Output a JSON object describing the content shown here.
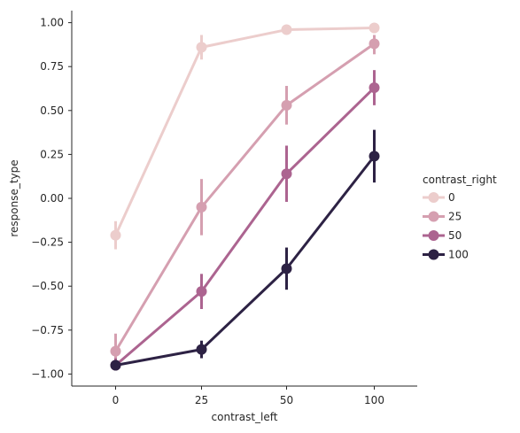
{
  "chart_data": {
    "type": "line",
    "xlabel": "contrast_left",
    "ylabel": "response_type",
    "categories": [
      "0",
      "25",
      "50",
      "100"
    ],
    "ylim": [
      -1.08,
      1.08
    ],
    "yticks": [
      "−1.00",
      "−0.75",
      "−0.50",
      "−0.25",
      "0.00",
      "0.25",
      "0.50",
      "0.75",
      "1.00"
    ],
    "ytick_values": [
      -1.0,
      -0.75,
      -0.5,
      -0.25,
      0.0,
      0.25,
      0.5,
      0.75,
      1.0
    ],
    "grid": false,
    "legend": {
      "title": "contrast_right",
      "position": "right"
    },
    "series": [
      {
        "name": "0",
        "color": "#eccdcc",
        "values": [
          -0.21,
          0.86,
          0.96,
          0.97
        ],
        "ci_low": [
          -0.29,
          0.79,
          0.94,
          0.94
        ],
        "ci_high": [
          -0.13,
          0.93,
          0.98,
          0.99
        ]
      },
      {
        "name": "25",
        "color": "#d59fb0",
        "values": [
          -0.87,
          -0.05,
          0.53,
          0.88
        ],
        "ci_low": [
          -0.96,
          -0.21,
          0.42,
          0.82
        ],
        "ci_high": [
          -0.77,
          0.11,
          0.64,
          0.93
        ]
      },
      {
        "name": "50",
        "color": "#ac6490",
        "values": [
          -0.95,
          -0.53,
          0.14,
          0.63
        ],
        "ci_low": [
          -0.98,
          -0.63,
          -0.02,
          0.53
        ],
        "ci_high": [
          -0.91,
          -0.43,
          0.3,
          0.73
        ]
      },
      {
        "name": "100",
        "color": "#2d2244",
        "values": [
          -0.95,
          -0.86,
          -0.4,
          0.24
        ],
        "ci_low": [
          -0.98,
          -0.91,
          -0.52,
          0.09
        ],
        "ci_high": [
          -0.92,
          -0.81,
          -0.28,
          0.39
        ]
      }
    ]
  }
}
